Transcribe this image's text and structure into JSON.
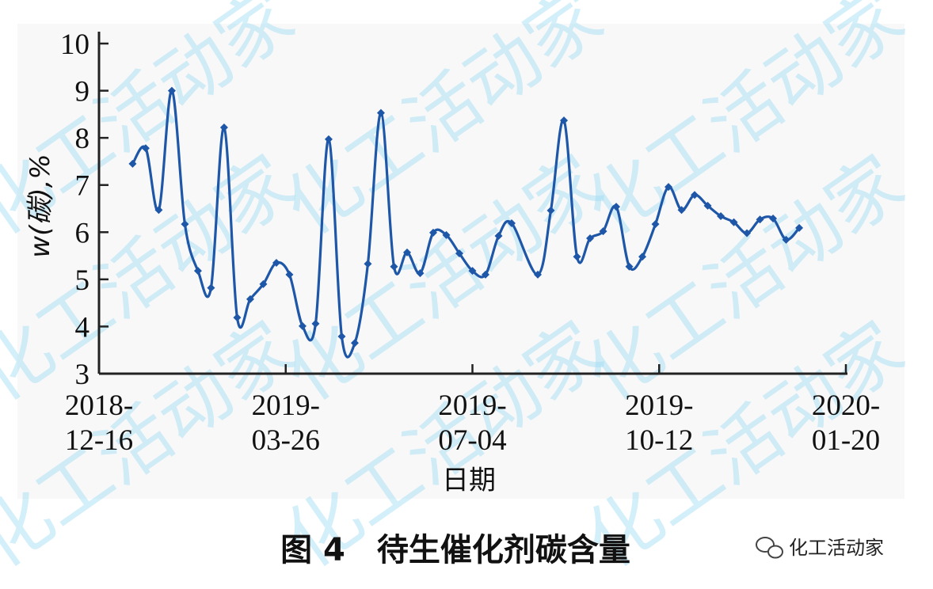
{
  "caption": "图 4　待生催化剂碳含量",
  "watermark": "化工活动家",
  "brand": {
    "text": "化工活动家",
    "icon": "wechat-icon"
  },
  "colors": {
    "line": "#1f57a8",
    "plot_bg": "#f8f8f8",
    "watermark": "#9fdcf5"
  },
  "chart_data": {
    "type": "line",
    "title": "",
    "xlabel": "日期",
    "ylabel": "w(碳),%",
    "ylim": [
      3,
      10
    ],
    "yticks": [
      "3",
      "4",
      "5",
      "6",
      "7",
      "8",
      "9",
      "10"
    ],
    "xlim": [
      "2018-12-16",
      "2020-01-20"
    ],
    "xticks": [
      {
        "line1": "2018-",
        "line2": "12-16",
        "date": "2018-12-16"
      },
      {
        "line1": "2019-",
        "line2": "03-26",
        "date": "2019-03-26"
      },
      {
        "line1": "2019-",
        "line2": "07-04",
        "date": "2019-07-04"
      },
      {
        "line1": "2019-",
        "line2": "10-12",
        "date": "2019-10-12"
      },
      {
        "line1": "2020-",
        "line2": "01-20",
        "date": "2020-01-20"
      }
    ],
    "grid": false,
    "marker": "diamond",
    "smooth": true,
    "x": [
      "2019-01-03",
      "2019-01-10",
      "2019-01-17",
      "2019-01-24",
      "2019-01-31",
      "2019-02-07",
      "2019-02-14",
      "2019-02-21",
      "2019-02-28",
      "2019-03-07",
      "2019-03-14",
      "2019-03-21",
      "2019-03-28",
      "2019-04-04",
      "2019-04-11",
      "2019-04-18",
      "2019-04-25",
      "2019-05-02",
      "2019-05-09",
      "2019-05-16",
      "2019-05-23",
      "2019-05-30",
      "2019-06-06",
      "2019-06-13",
      "2019-06-20",
      "2019-06-27",
      "2019-07-04",
      "2019-07-11",
      "2019-07-18",
      "2019-07-25",
      "2019-08-08",
      "2019-08-15",
      "2019-08-22",
      "2019-08-29",
      "2019-09-05",
      "2019-09-12",
      "2019-09-19",
      "2019-09-26",
      "2019-10-03",
      "2019-10-10",
      "2019-10-17",
      "2019-10-24",
      "2019-10-31",
      "2019-11-07",
      "2019-11-14",
      "2019-11-21",
      "2019-11-28",
      "2019-12-05",
      "2019-12-12",
      "2019-12-19",
      "2019-12-26"
    ],
    "y": [
      7.45,
      7.78,
      6.47,
      9.0,
      6.17,
      5.18,
      4.82,
      8.22,
      4.19,
      4.58,
      4.9,
      5.35,
      5.1,
      4.01,
      4.06,
      7.97,
      3.79,
      3.65,
      5.33,
      8.53,
      5.27,
      5.57,
      5.13,
      5.99,
      5.94,
      5.55,
      5.18,
      5.1,
      5.92,
      6.19,
      5.1,
      6.46,
      8.37,
      5.48,
      5.87,
      6.02,
      6.54,
      5.27,
      5.48,
      6.17,
      6.96,
      6.47,
      6.79,
      6.56,
      6.34,
      6.21,
      5.98,
      6.27,
      6.29,
      5.84,
      6.09
    ]
  }
}
